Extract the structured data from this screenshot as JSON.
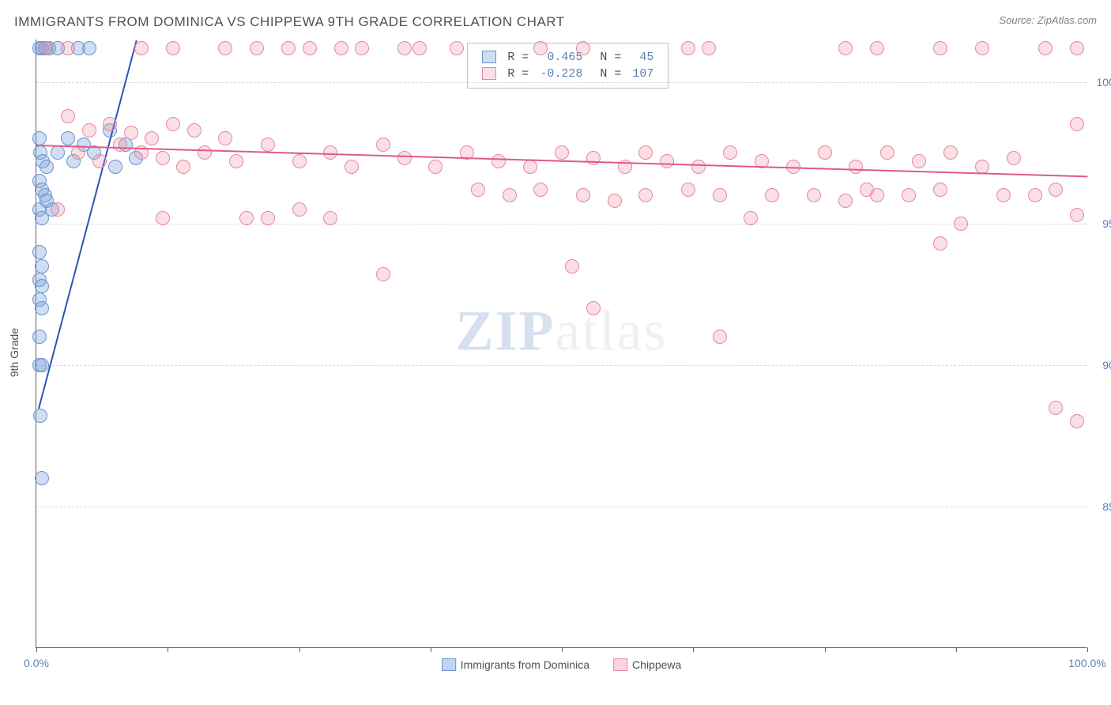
{
  "title": "IMMIGRANTS FROM DOMINICA VS CHIPPEWA 9TH GRADE CORRELATION CHART",
  "source": "Source: ZipAtlas.com",
  "ylabel": "9th Grade",
  "watermark_a": "ZIP",
  "watermark_b": "atlas",
  "chart": {
    "type": "scatter",
    "background_color": "#ffffff",
    "grid_color": "#d8d8d8",
    "axis_color": "#606060",
    "tick_label_color": "#5b7fb5",
    "xlim": [
      0,
      100
    ],
    "ylim": [
      80,
      101.5
    ],
    "x_ticks": [
      0,
      50,
      100
    ],
    "x_tick_labels": [
      "0.0%",
      "",
      "100.0%"
    ],
    "x_minor_ticks": [
      12.5,
      25,
      37.5,
      50,
      62.5,
      75,
      87.5
    ],
    "y_ticks": [
      85,
      90,
      95,
      100
    ],
    "y_tick_labels": [
      "85.0%",
      "90.0%",
      "95.0%",
      "100.0%"
    ],
    "marker_radius": 9,
    "marker_stroke_width": 1.5,
    "series": [
      {
        "name": "Immigrants from Dominica",
        "fill_color": "rgba(120,160,220,0.35)",
        "stroke_color": "#6a93cf",
        "line_color": "#2a56b5",
        "R": "0.465",
        "N": "45",
        "trend": {
          "x1": 0.2,
          "y1": 88.5,
          "x2": 9.5,
          "y2": 101.5
        },
        "points": [
          [
            0.3,
            101.2
          ],
          [
            0.5,
            101.2
          ],
          [
            0.8,
            101.2
          ],
          [
            1.2,
            101.2
          ],
          [
            2.0,
            101.2
          ],
          [
            4.0,
            101.2
          ],
          [
            5.0,
            101.2
          ],
          [
            0.3,
            98.0
          ],
          [
            0.4,
            97.5
          ],
          [
            0.6,
            97.2
          ],
          [
            1.0,
            97.0
          ],
          [
            2.0,
            97.5
          ],
          [
            3.0,
            98.0
          ],
          [
            3.5,
            97.2
          ],
          [
            4.5,
            97.8
          ],
          [
            5.5,
            97.5
          ],
          [
            7.0,
            98.3
          ],
          [
            7.5,
            97.0
          ],
          [
            8.5,
            97.8
          ],
          [
            9.5,
            97.3
          ],
          [
            0.3,
            96.5
          ],
          [
            0.5,
            96.2
          ],
          [
            0.8,
            96.0
          ],
          [
            0.3,
            95.5
          ],
          [
            0.5,
            95.2
          ],
          [
            1.0,
            95.8
          ],
          [
            1.5,
            95.5
          ],
          [
            0.3,
            94.0
          ],
          [
            0.5,
            93.5
          ],
          [
            0.3,
            93.0
          ],
          [
            0.5,
            92.8
          ],
          [
            0.3,
            92.3
          ],
          [
            0.5,
            92.0
          ],
          [
            0.3,
            91.0
          ],
          [
            0.3,
            90.0
          ],
          [
            0.5,
            90.0
          ],
          [
            0.4,
            88.2
          ],
          [
            0.5,
            86.0
          ]
        ]
      },
      {
        "name": "Chippewa",
        "fill_color": "rgba(240,150,170,0.30)",
        "stroke_color": "#e388a0",
        "line_color": "#e05a86",
        "R": "-0.228",
        "N": "107",
        "trend": {
          "x1": 0,
          "y1": 97.8,
          "x2": 100,
          "y2": 96.7
        },
        "points": [
          [
            1,
            101.2
          ],
          [
            3,
            101.2
          ],
          [
            10,
            101.2
          ],
          [
            13,
            101.2
          ],
          [
            18,
            101.2
          ],
          [
            21,
            101.2
          ],
          [
            24,
            101.2
          ],
          [
            26,
            101.2
          ],
          [
            29,
            101.2
          ],
          [
            31,
            101.2
          ],
          [
            35,
            101.2
          ],
          [
            36.5,
            101.2
          ],
          [
            40,
            101.2
          ],
          [
            48,
            101.2
          ],
          [
            52,
            101.2
          ],
          [
            62,
            101.2
          ],
          [
            64,
            101.2
          ],
          [
            77,
            101.2
          ],
          [
            80,
            101.2
          ],
          [
            86,
            101.2
          ],
          [
            90,
            101.2
          ],
          [
            96,
            101.2
          ],
          [
            99,
            101.2
          ],
          [
            3,
            98.8
          ],
          [
            5,
            98.3
          ],
          [
            7,
            98.5
          ],
          [
            9,
            98.2
          ],
          [
            11,
            98.0
          ],
          [
            13,
            98.5
          ],
          [
            15,
            98.3
          ],
          [
            18,
            98.0
          ],
          [
            4,
            97.5
          ],
          [
            6,
            97.2
          ],
          [
            8,
            97.8
          ],
          [
            10,
            97.5
          ],
          [
            12,
            97.3
          ],
          [
            14,
            97.0
          ],
          [
            16,
            97.5
          ],
          [
            19,
            97.2
          ],
          [
            22,
            97.8
          ],
          [
            25,
            97.2
          ],
          [
            28,
            97.5
          ],
          [
            30,
            97.0
          ],
          [
            33,
            97.8
          ],
          [
            35,
            97.3
          ],
          [
            38,
            97.0
          ],
          [
            41,
            97.5
          ],
          [
            44,
            97.2
          ],
          [
            47,
            97.0
          ],
          [
            50,
            97.5
          ],
          [
            53,
            97.3
          ],
          [
            56,
            97.0
          ],
          [
            58,
            97.5
          ],
          [
            60,
            97.2
          ],
          [
            63,
            97.0
          ],
          [
            66,
            97.5
          ],
          [
            69,
            97.2
          ],
          [
            72,
            97.0
          ],
          [
            75,
            97.5
          ],
          [
            78,
            97.0
          ],
          [
            81,
            97.5
          ],
          [
            84,
            97.2
          ],
          [
            87,
            97.5
          ],
          [
            90,
            97.0
          ],
          [
            93,
            97.3
          ],
          [
            99,
            98.5
          ],
          [
            2,
            95.5
          ],
          [
            12,
            95.2
          ],
          [
            20,
            95.2
          ],
          [
            22,
            95.2
          ],
          [
            25,
            95.5
          ],
          [
            28,
            95.2
          ],
          [
            42,
            96.2
          ],
          [
            45,
            96.0
          ],
          [
            48,
            96.2
          ],
          [
            52,
            96.0
          ],
          [
            55,
            95.8
          ],
          [
            58,
            96.0
          ],
          [
            62,
            96.2
          ],
          [
            65,
            96.0
          ],
          [
            68,
            95.2
          ],
          [
            70,
            96.0
          ],
          [
            74,
            96.0
          ],
          [
            77,
            95.8
          ],
          [
            79,
            96.2
          ],
          [
            80,
            96.0
          ],
          [
            83,
            96.0
          ],
          [
            86,
            96.2
          ],
          [
            88,
            95.0
          ],
          [
            92,
            96.0
          ],
          [
            95,
            96.0
          ],
          [
            97,
            96.2
          ],
          [
            99,
            95.3
          ],
          [
            33,
            93.2
          ],
          [
            51,
            93.5
          ],
          [
            53,
            92.0
          ],
          [
            65,
            91.0
          ],
          [
            86,
            94.3
          ],
          [
            97,
            88.5
          ],
          [
            99,
            88.0
          ]
        ]
      }
    ]
  },
  "legend_top": {
    "header_R": "R =",
    "header_N": "N ="
  },
  "legend_bottom": [
    {
      "label": "Immigrants from Dominica",
      "fill": "rgba(120,160,220,0.45)",
      "stroke": "#6a93cf"
    },
    {
      "label": "Chippewa",
      "fill": "rgba(240,150,170,0.40)",
      "stroke": "#e388a0"
    }
  ]
}
